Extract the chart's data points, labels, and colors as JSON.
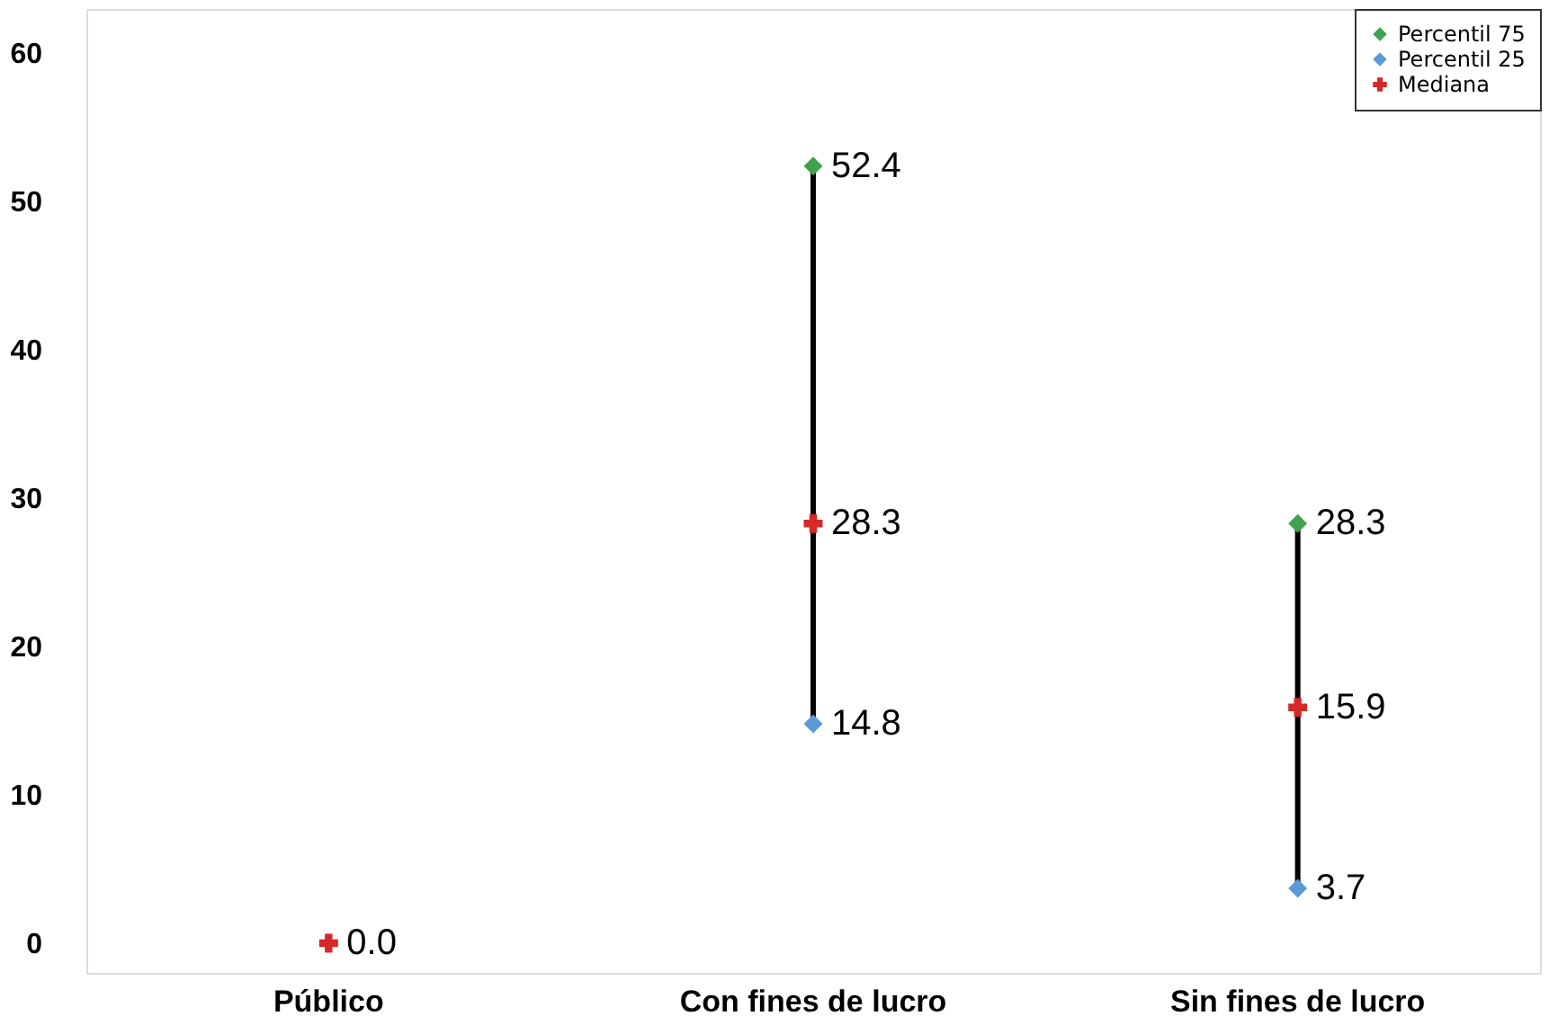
{
  "chart_data": {
    "type": "scatter",
    "categories": [
      "Público",
      "Con fines de lucro",
      "Sin fines de lucro"
    ],
    "series": [
      {
        "name": "Percentil 75",
        "color": "#3fa34d",
        "marker": "diamond",
        "values": [
          null,
          52.4,
          28.3
        ],
        "value_labels": [
          null,
          "52.4",
          "28.3"
        ]
      },
      {
        "name": "Percentil 25",
        "color": "#5b9bd5",
        "marker": "diamond",
        "values": [
          null,
          14.8,
          3.7
        ],
        "value_labels": [
          null,
          "14.8",
          "3.7"
        ]
      },
      {
        "name": "Mediana",
        "color": "#d62828",
        "marker": "cross",
        "values": [
          0,
          28.3,
          15.9
        ],
        "value_labels": [
          "0.0",
          "28.3",
          "15.9"
        ]
      }
    ],
    "ylim": [
      -2,
      63
    ],
    "yticks": [
      0,
      10,
      20,
      30,
      40,
      50,
      60
    ],
    "grid": false,
    "legend": "top right"
  }
}
